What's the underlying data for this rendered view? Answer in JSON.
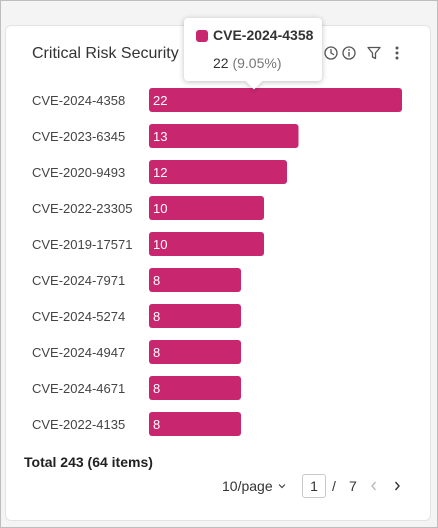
{
  "title": "Critical Risk Security Issues",
  "tooltip": {
    "label": "CVE-2024-4358",
    "value": "22",
    "percent": "(9.05%)"
  },
  "chart_data": {
    "type": "bar",
    "orientation": "horizontal",
    "categories": [
      "CVE-2024-4358",
      "CVE-2023-6345",
      "CVE-2020-9493",
      "CVE-2022-23305",
      "CVE-2019-17571",
      "CVE-2024-7971",
      "CVE-2024-5274",
      "CVE-2024-4947",
      "CVE-2024-4671",
      "CVE-2022-4135"
    ],
    "values": [
      22,
      13,
      12,
      10,
      10,
      8,
      8,
      8,
      8,
      8
    ],
    "color": "#c8276f",
    "xlim": [
      0,
      22
    ]
  },
  "footer": {
    "total": "Total 243 (64 items)",
    "page_size": "10/page",
    "current_page": "1",
    "separator": "/",
    "total_pages": "7"
  },
  "icons": {
    "history": "clock-icon",
    "info": "info-icon",
    "filter": "filter-icon",
    "more": "more-vertical-icon",
    "prev": "chevron-left-icon",
    "next": "chevron-right-icon",
    "dropdown": "chevron-down-icon"
  }
}
